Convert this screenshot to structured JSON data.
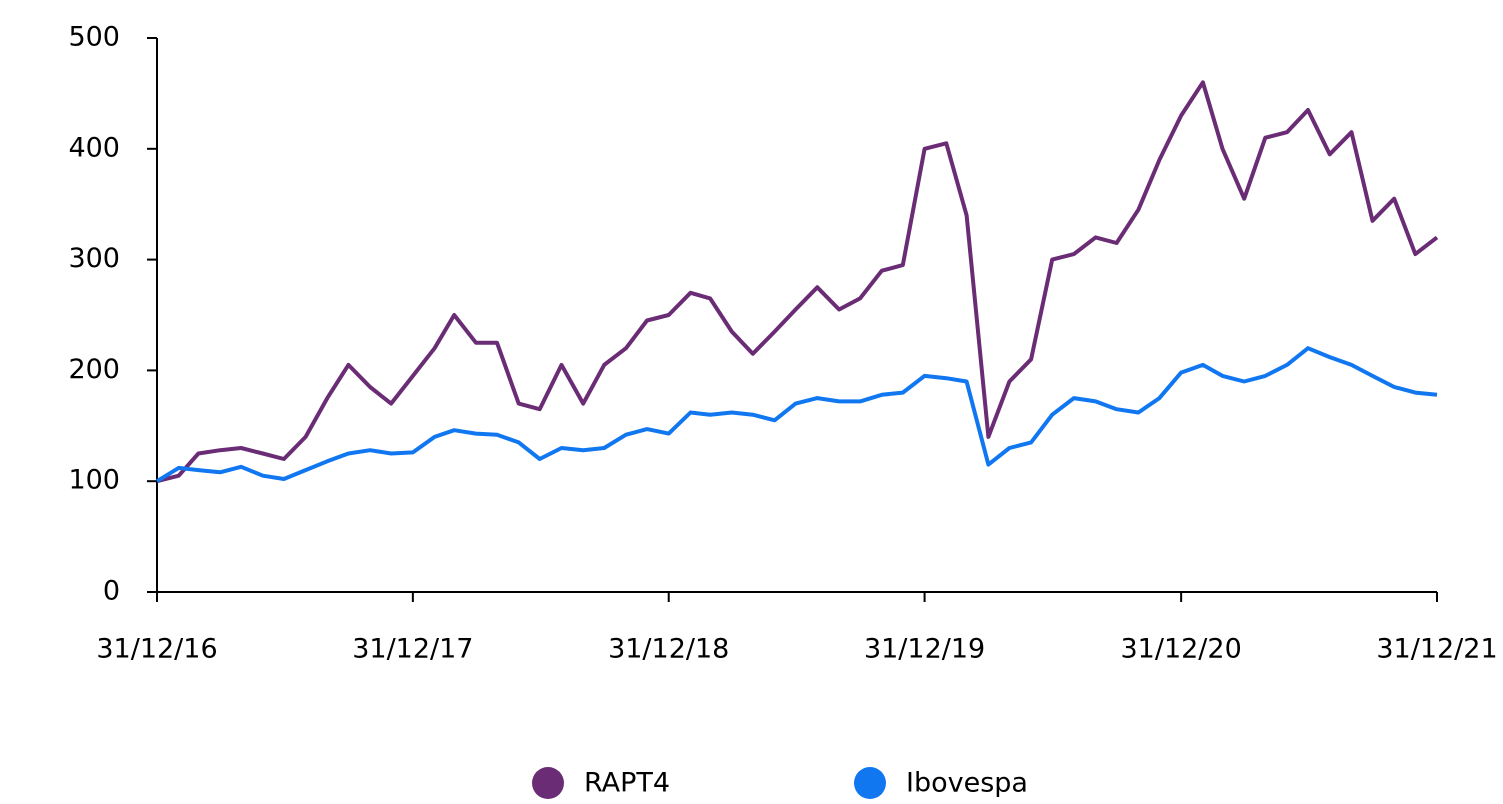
{
  "chart_data": {
    "type": "line",
    "x": [
      "2016-12-31",
      "2017-01-31",
      "2017-02-28",
      "2017-03-31",
      "2017-04-30",
      "2017-05-31",
      "2017-06-30",
      "2017-07-31",
      "2017-08-31",
      "2017-09-30",
      "2017-10-31",
      "2017-11-30",
      "2017-12-31",
      "2018-01-31",
      "2018-02-28",
      "2018-03-31",
      "2018-04-30",
      "2018-05-31",
      "2018-06-30",
      "2018-07-31",
      "2018-08-31",
      "2018-09-30",
      "2018-10-31",
      "2018-11-30",
      "2018-12-31",
      "2019-01-31",
      "2019-02-28",
      "2019-03-31",
      "2019-04-30",
      "2019-05-31",
      "2019-06-30",
      "2019-07-31",
      "2019-08-31",
      "2019-09-30",
      "2019-10-31",
      "2019-11-30",
      "2019-12-31",
      "2020-01-31",
      "2020-02-29",
      "2020-03-31",
      "2020-04-30",
      "2020-05-31",
      "2020-06-30",
      "2020-07-31",
      "2020-08-31",
      "2020-09-30",
      "2020-10-31",
      "2020-11-30",
      "2020-12-31",
      "2021-01-31",
      "2021-02-28",
      "2021-03-31",
      "2021-04-30",
      "2021-05-31",
      "2021-06-30",
      "2021-07-31",
      "2021-08-31",
      "2021-09-30",
      "2021-10-31",
      "2021-11-30",
      "2021-12-31"
    ],
    "series": [
      {
        "name": "RAPT4",
        "color": "#6a2c74",
        "values": [
          100,
          105,
          125,
          128,
          130,
          125,
          120,
          140,
          175,
          205,
          185,
          170,
          195,
          220,
          250,
          225,
          225,
          170,
          165,
          205,
          170,
          205,
          220,
          245,
          250,
          270,
          265,
          235,
          215,
          235,
          255,
          275,
          255,
          265,
          290,
          295,
          400,
          405,
          340,
          140,
          190,
          210,
          300,
          305,
          320,
          315,
          345,
          390,
          430,
          460,
          400,
          355,
          410,
          415,
          435,
          395,
          415,
          335,
          355,
          305,
          320
        ]
      },
      {
        "name": "Ibovespa",
        "color": "#1077f0",
        "values": [
          100,
          112,
          110,
          108,
          113,
          105,
          102,
          110,
          118,
          125,
          128,
          125,
          126,
          140,
          146,
          143,
          142,
          135,
          120,
          130,
          128,
          130,
          142,
          147,
          143,
          162,
          160,
          162,
          160,
          155,
          170,
          175,
          172,
          172,
          178,
          180,
          195,
          193,
          190,
          115,
          130,
          135,
          160,
          175,
          172,
          165,
          162,
          175,
          198,
          205,
          195,
          190,
          195,
          205,
          220,
          212,
          205,
          195,
          185,
          180,
          178
        ]
      }
    ],
    "ylim": [
      0,
      500
    ],
    "yticks": [
      0,
      100,
      200,
      300,
      400,
      500
    ],
    "xlim": [
      "2016-12-31",
      "2021-12-31"
    ],
    "xticks": [
      {
        "value": "2016-12-31",
        "label": "31/12/16"
      },
      {
        "value": "2017-12-31",
        "label": "31/12/17"
      },
      {
        "value": "2018-12-31",
        "label": "31/12/18"
      },
      {
        "value": "2019-12-31",
        "label": "31/12/19"
      },
      {
        "value": "2020-12-31",
        "label": "31/12/20"
      },
      {
        "value": "2021-12-31",
        "label": "31/12/21"
      }
    ],
    "grid": false,
    "legend": "bottom"
  }
}
